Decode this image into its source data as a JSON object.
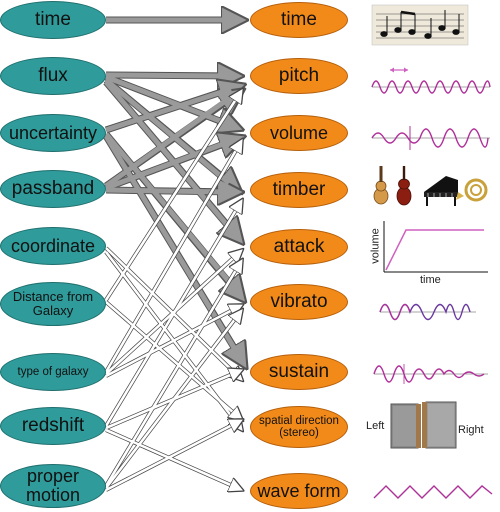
{
  "parameters": [
    {
      "label": "time"
    },
    {
      "label": "flux"
    },
    {
      "label": "uncertainty"
    },
    {
      "label": "passband"
    },
    {
      "label": "coordinate"
    },
    {
      "label": "Distance from Galaxy"
    },
    {
      "label": "type of galaxy"
    },
    {
      "label": "redshift"
    },
    {
      "label": "proper motion"
    }
  ],
  "sound_attributes": [
    {
      "label": "time"
    },
    {
      "label": "pitch"
    },
    {
      "label": "volume"
    },
    {
      "label": "timber"
    },
    {
      "label": "attack"
    },
    {
      "label": "vibrato"
    },
    {
      "label": "sustain"
    },
    {
      "label": "spatial direction (stereo)"
    },
    {
      "label": "wave form"
    }
  ],
  "illustrations": {
    "attack_xlabel": "time",
    "attack_ylabel": "volume",
    "stereo_left": "Left",
    "stereo_right": "Right"
  },
  "colors": {
    "parameter_fill": "#2f9b9a",
    "sound_fill": "#f28a1a",
    "wave_color": "#b0309a"
  }
}
